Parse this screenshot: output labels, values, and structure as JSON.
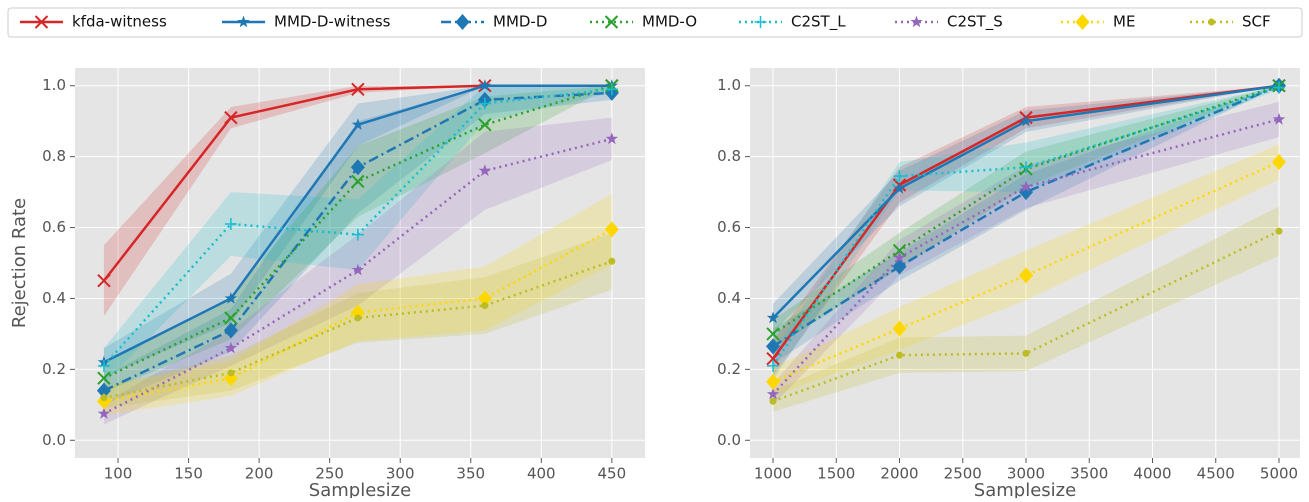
{
  "chart_data": [
    {
      "type": "line",
      "xlabel": "Samplesize",
      "ylabel": "Rejection Rate",
      "x": [
        90,
        180,
        270,
        360,
        450
      ],
      "xlim": [
        69.5,
        473.5
      ],
      "xticks": [
        100,
        150,
        200,
        250,
        300,
        350,
        400,
        450
      ],
      "ylim": [
        -0.05,
        1.05
      ],
      "yticks": [
        {
          "value": 0,
          "label": "0.0"
        },
        0.2,
        0.4,
        0.6,
        0.8,
        {
          "value": 1,
          "label": "1.0"
        }
      ],
      "grid": true,
      "series": [
        {
          "name": "kfda-witness",
          "color": "#d62728",
          "marker": "x",
          "linestyle": "solid",
          "values": [
            0.45,
            0.91,
            0.99,
            1.0,
            1.0
          ],
          "errors": [
            0.1,
            0.03,
            0.01,
            0,
            0
          ]
        },
        {
          "name": "MMD-D-witness",
          "color": "#1f77b4",
          "marker": "star",
          "linestyle": "solid",
          "values": [
            0.22,
            0.4,
            0.89,
            1.0,
            1.0
          ],
          "errors": [
            0.04,
            0.07,
            0.06,
            0,
            0
          ]
        },
        {
          "name": "MMD-D",
          "color": "#1f77b4",
          "marker": "diamond",
          "linestyle": "dashdot",
          "values": [
            0.14,
            0.31,
            0.77,
            0.96,
            0.98
          ],
          "errors": [
            0.04,
            0.06,
            0.13,
            0.04,
            0.02
          ]
        },
        {
          "name": "MMD-O",
          "color": "#2ca02c",
          "marker": "x",
          "linestyle": "dotted",
          "values": [
            0.175,
            0.345,
            0.73,
            0.89,
            1.0
          ],
          "errors": [
            0.04,
            0.06,
            0.1,
            0.08,
            0
          ]
        },
        {
          "name": "C2ST_L",
          "color": "#17becf",
          "marker": "plus",
          "linestyle": "dotted",
          "values": [
            0.21,
            0.61,
            0.58,
            0.95,
            0.99
          ],
          "errors": [
            0.05,
            0.09,
            0.1,
            0.05,
            0.01
          ]
        },
        {
          "name": "C2ST_S",
          "color": "#9467bd",
          "marker": "star",
          "linestyle": "dotted",
          "values": [
            0.075,
            0.26,
            0.48,
            0.76,
            0.85
          ],
          "errors": [
            0.03,
            0.05,
            0.1,
            0.11,
            0.06
          ]
        },
        {
          "name": "ME",
          "color": "#ffd700",
          "marker": "diamond",
          "linestyle": "dotted",
          "values": [
            0.11,
            0.175,
            0.36,
            0.4,
            0.595
          ],
          "errors": [
            0.04,
            0.05,
            0.08,
            0.09,
            0.1
          ]
        },
        {
          "name": "SCF",
          "color": "#bcbd22",
          "marker": "dot",
          "linestyle": "dotted",
          "values": [
            0.12,
            0.19,
            0.345,
            0.38,
            0.505
          ],
          "errors": [
            0.03,
            0.05,
            0.07,
            0.08,
            0.08
          ]
        }
      ]
    },
    {
      "type": "line",
      "xlabel": "Samplesize",
      "x": [
        1000,
        2000,
        3000,
        5000
      ],
      "xlim": [
        818,
        5166
      ],
      "xticks": [
        1000,
        1500,
        2000,
        2500,
        3000,
        3500,
        4000,
        4500,
        5000
      ],
      "ylim": [
        -0.05,
        1.05
      ],
      "yticks": [
        {
          "value": 0,
          "label": "0.0"
        },
        0.2,
        0.4,
        0.6,
        0.8,
        {
          "value": 1,
          "label": "1.0"
        }
      ],
      "grid": true,
      "series": [
        {
          "color": "#d62728",
          "marker": "x",
          "linestyle": "solid",
          "values": [
            0.23,
            0.72,
            0.91,
            1.0
          ],
          "errors": [
            0.05,
            0.05,
            0.03,
            0
          ]
        },
        {
          "color": "#1f77b4",
          "marker": "star",
          "linestyle": "solid",
          "values": [
            0.345,
            0.71,
            0.9,
            1.0
          ],
          "errors": [
            0.04,
            0.05,
            0.03,
            0
          ]
        },
        {
          "color": "#1f77b4",
          "marker": "diamond",
          "linestyle": "dashdot",
          "values": [
            0.265,
            0.49,
            0.7,
            1.0
          ],
          "errors": [
            0.05,
            0.04,
            0.05,
            0
          ]
        },
        {
          "color": "#2ca02c",
          "marker": "x",
          "linestyle": "dotted",
          "values": [
            0.3,
            0.535,
            0.765,
            1.0
          ],
          "errors": [
            0.04,
            0.05,
            0.05,
            0
          ]
        },
        {
          "color": "#17becf",
          "marker": "plus",
          "linestyle": "dotted",
          "values": [
            0.21,
            0.745,
            0.77,
            0.995
          ],
          "errors": [
            0.04,
            0.04,
            0.07,
            0.005
          ]
        },
        {
          "color": "#9467bd",
          "marker": "star",
          "linestyle": "dotted",
          "values": [
            0.13,
            0.515,
            0.715,
            0.905
          ],
          "errors": [
            0.03,
            0.05,
            0.06,
            0.05
          ]
        },
        {
          "color": "#ffd700",
          "marker": "diamond",
          "linestyle": "dotted",
          "values": [
            0.165,
            0.315,
            0.465,
            0.785
          ],
          "errors": [
            0.04,
            0.06,
            0.07,
            0.05
          ]
        },
        {
          "color": "#bcbd22",
          "marker": "dot",
          "linestyle": "dotted",
          "values": [
            0.11,
            0.24,
            0.245,
            0.59
          ],
          "errors": [
            0.03,
            0.05,
            0.05,
            0.07
          ]
        }
      ]
    }
  ]
}
